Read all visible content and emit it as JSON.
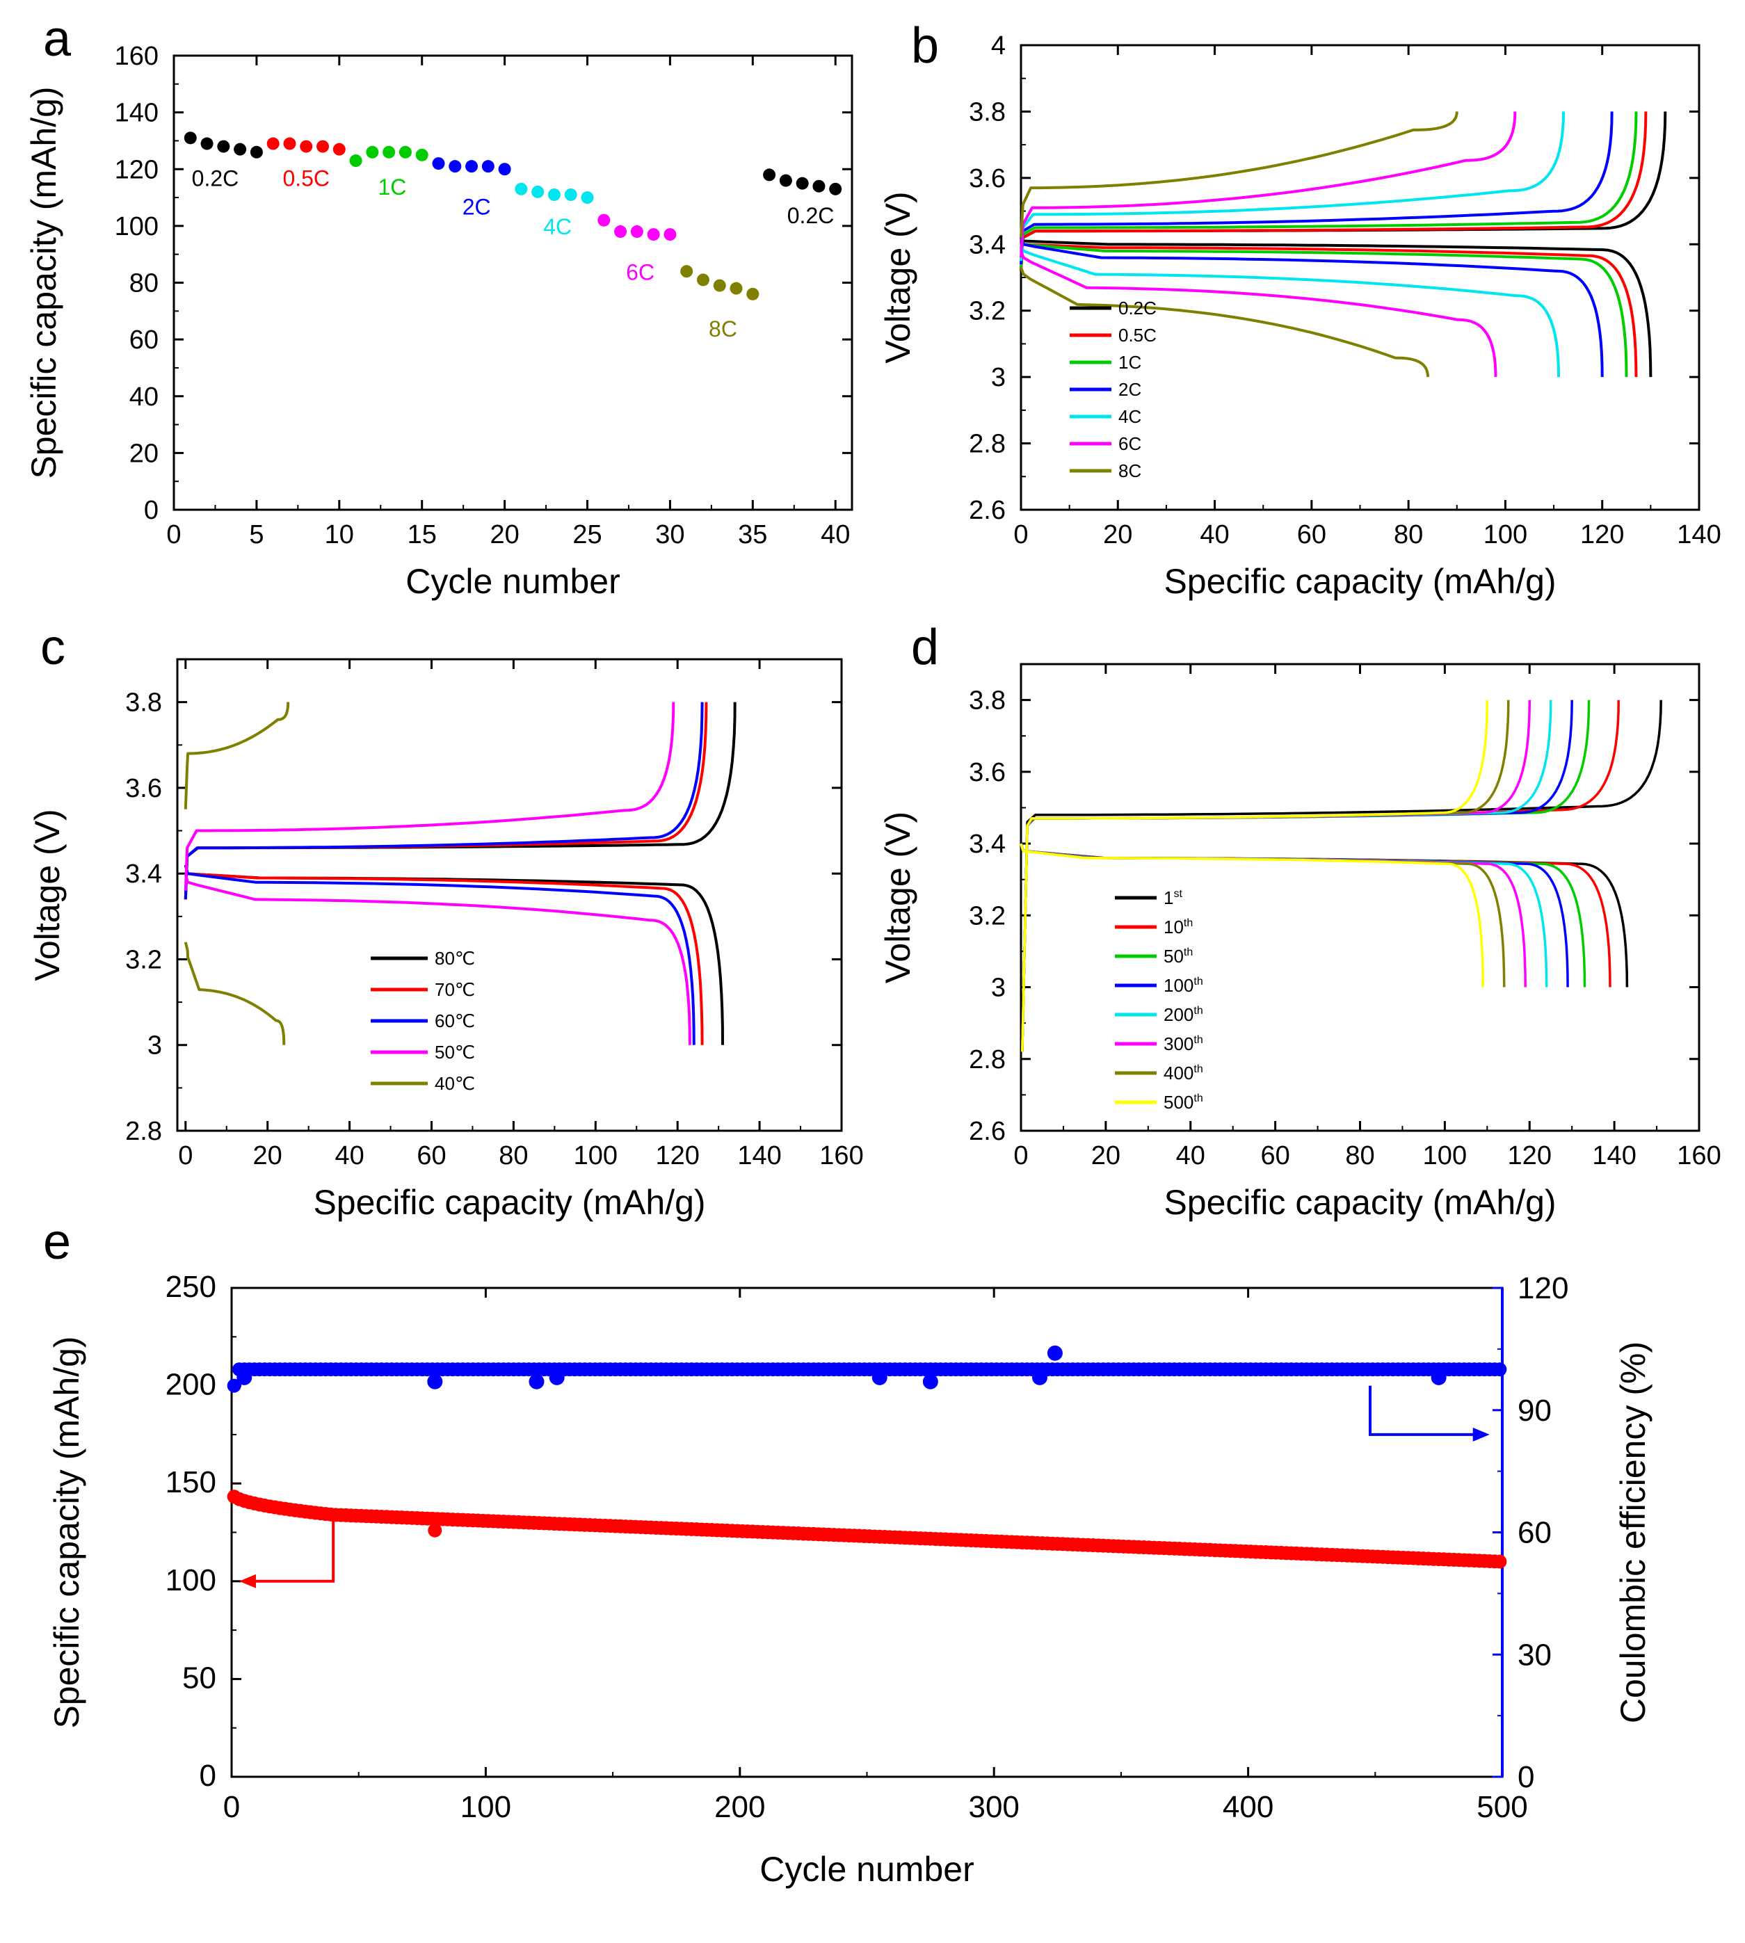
{
  "chart_data": [
    {
      "panel": "a",
      "type": "scatter",
      "xlabel": "Cycle number",
      "ylabel": "Specific capacity (mAh/g)",
      "xlim": [
        0,
        41
      ],
      "ylim": [
        0,
        160
      ],
      "xticks": [
        0,
        5,
        10,
        15,
        20,
        25,
        30,
        35,
        40
      ],
      "yticks": [
        0,
        20,
        40,
        60,
        80,
        100,
        120,
        140,
        160
      ],
      "series": [
        {
          "name": "0.2C",
          "color": "#000000",
          "x": [
            1,
            2,
            3,
            4,
            5
          ],
          "y": [
            131,
            129,
            128,
            127,
            126
          ]
        },
        {
          "name": "0.5C",
          "color": "#ff0000",
          "x": [
            6,
            7,
            8,
            9,
            10
          ],
          "y": [
            129,
            129,
            128,
            128,
            127
          ]
        },
        {
          "name": "1C",
          "color": "#00cc00",
          "x": [
            11,
            12,
            13,
            14,
            15
          ],
          "y": [
            123,
            126,
            126,
            126,
            125
          ]
        },
        {
          "name": "2C",
          "color": "#0000ff",
          "x": [
            16,
            17,
            18,
            19,
            20
          ],
          "y": [
            122,
            121,
            121,
            121,
            120
          ]
        },
        {
          "name": "4C",
          "color": "#00e5ee",
          "x": [
            21,
            22,
            23,
            24,
            25
          ],
          "y": [
            113,
            112,
            111,
            111,
            110
          ]
        },
        {
          "name": "6C",
          "color": "#ff00ff",
          "x": [
            26,
            27,
            28,
            29,
            30
          ],
          "y": [
            102,
            98,
            98,
            97,
            97
          ]
        },
        {
          "name": "8C",
          "color": "#808000",
          "x": [
            31,
            32,
            33,
            34,
            35
          ],
          "y": [
            84,
            81,
            79,
            78,
            76
          ]
        },
        {
          "name": "0.2C",
          "color": "#000000",
          "x": [
            36,
            37,
            38,
            39,
            40
          ],
          "y": [
            118,
            116,
            115,
            114,
            113
          ]
        }
      ],
      "annotations": [
        {
          "text": "0.2C",
          "color": "#000000",
          "x": 2.5,
          "y": 114
        },
        {
          "text": "0.5C",
          "color": "#ff0000",
          "x": 8,
          "y": 114
        },
        {
          "text": "1C",
          "color": "#00cc00",
          "x": 13.2,
          "y": 111
        },
        {
          "text": "2C",
          "color": "#0000ff",
          "x": 18.3,
          "y": 104
        },
        {
          "text": "4C",
          "color": "#00e5ee",
          "x": 23.2,
          "y": 97
        },
        {
          "text": "6C",
          "color": "#ff00ff",
          "x": 28.2,
          "y": 81
        },
        {
          "text": "8C",
          "color": "#808000",
          "x": 33.2,
          "y": 61
        },
        {
          "text": "0.2C",
          "color": "#000000",
          "x": 38.5,
          "y": 101
        }
      ]
    },
    {
      "panel": "b",
      "type": "line",
      "xlabel": "Specific capacity (mAh/g)",
      "ylabel": "Voltage (V)",
      "xlim": [
        0,
        140
      ],
      "ylim": [
        2.6,
        4.0
      ],
      "xticks": [
        0,
        20,
        40,
        60,
        80,
        100,
        120,
        140
      ],
      "yticks": [
        2.6,
        2.8,
        3.0,
        3.2,
        3.4,
        3.6,
        3.8,
        4.0
      ],
      "legend_position": "bottom-left",
      "series": [
        {
          "name": "0.2C",
          "color": "#000000",
          "capacity": 133,
          "plateau_charge": 3.45,
          "plateau_discharge": 3.4,
          "charge_start": 3.44,
          "discharge_start": 3.41,
          "discharge_cap": 130,
          "charge_slope": 0.01,
          "discharge_slope": 0.02
        },
        {
          "name": "0.5C",
          "color": "#ff0000",
          "capacity": 129,
          "plateau_charge": 3.45,
          "plateau_discharge": 3.39,
          "charge_start": 3.44,
          "discharge_start": 3.4,
          "discharge_cap": 127,
          "charge_slope": 0.015,
          "discharge_slope": 0.03
        },
        {
          "name": "1C",
          "color": "#00cc00",
          "capacity": 127,
          "plateau_charge": 3.46,
          "plateau_discharge": 3.38,
          "charge_start": 3.45,
          "discharge_start": 3.4,
          "discharge_cap": 125,
          "charge_slope": 0.02,
          "discharge_slope": 0.03
        },
        {
          "name": "2C",
          "color": "#0000ff",
          "capacity": 122,
          "plateau_charge": 3.47,
          "plateau_discharge": 3.36,
          "charge_start": 3.46,
          "discharge_start": 3.4,
          "discharge_cap": 120,
          "charge_slope": 0.05,
          "discharge_slope": 0.05
        },
        {
          "name": "4C",
          "color": "#00e5ee",
          "capacity": 112,
          "plateau_charge": 3.5,
          "plateau_discharge": 3.31,
          "charge_start": 3.47,
          "discharge_start": 3.38,
          "discharge_cap": 111,
          "charge_slope": 0.09,
          "discharge_slope": 0.08
        },
        {
          "name": "6C",
          "color": "#ff00ff",
          "capacity": 102,
          "plateau_charge": 3.52,
          "plateau_discharge": 3.27,
          "charge_start": 3.48,
          "discharge_start": 3.36,
          "discharge_cap": 98,
          "charge_slope": 0.18,
          "discharge_slope": 0.12
        },
        {
          "name": "8C",
          "color": "#808000",
          "capacity": 90,
          "plateau_charge": 3.58,
          "plateau_discharge": 3.22,
          "charge_start": 3.54,
          "discharge_start": 3.31,
          "discharge_cap": 84,
          "charge_slope": 0.22,
          "discharge_slope": 0.2
        }
      ],
      "charge_end_voltage": 3.8,
      "discharge_end_voltage": 3.0
    },
    {
      "panel": "c",
      "type": "line",
      "xlabel": "Specific capacity (mAh/g)",
      "ylabel": "Voltage (V)",
      "xlim": [
        -2,
        160
      ],
      "ylim": [
        2.8,
        3.9
      ],
      "xticks": [
        0,
        20,
        40,
        60,
        80,
        100,
        120,
        140,
        160
      ],
      "yticks": [
        2.8,
        3.0,
        3.2,
        3.4,
        3.6,
        3.8
      ],
      "legend_position": "bottom-center",
      "series": [
        {
          "name": "80℃",
          "color": "#000000",
          "capacity": 134,
          "plateau_charge": 3.47,
          "plateau_discharge": 3.39,
          "charge_start": 3.46,
          "discharge_start": 3.4,
          "discharge_cap": 131,
          "charge_slope": 0.01,
          "discharge_slope": 0.02
        },
        {
          "name": "70℃",
          "color": "#ff0000",
          "capacity": 127,
          "plateau_charge": 3.47,
          "plateau_discharge": 3.39,
          "charge_start": 3.46,
          "discharge_start": 3.4,
          "discharge_cap": 126,
          "charge_slope": 0.02,
          "discharge_slope": 0.03
        },
        {
          "name": "60℃",
          "color": "#0000ff",
          "capacity": 126,
          "plateau_charge": 3.47,
          "plateau_discharge": 3.38,
          "charge_start": 3.46,
          "discharge_start": 3.4,
          "discharge_cap": 124,
          "charge_slope": 0.03,
          "discharge_slope": 0.04
        },
        {
          "name": "50℃",
          "color": "#ff00ff",
          "capacity": 119,
          "plateau_charge": 3.51,
          "plateau_discharge": 3.34,
          "charge_start": 3.48,
          "discharge_start": 3.38,
          "discharge_cap": 123,
          "charge_slope": 0.06,
          "discharge_slope": 0.06
        },
        {
          "name": "40℃",
          "color": "#808000",
          "capacity": 25,
          "plateau_charge": 3.69,
          "plateau_discharge": 3.13,
          "charge_start": 3.67,
          "discharge_start": 3.22,
          "discharge_cap": 24,
          "charge_slope": 0.1,
          "discharge_slope": 0.09
        }
      ],
      "charge_end_voltage": 3.8,
      "discharge_end_voltage": 3.0
    },
    {
      "panel": "d",
      "type": "line",
      "xlabel": "Specific capacity (mAh/g)",
      "ylabel": "Voltage (V)",
      "xlim": [
        0,
        160
      ],
      "ylim": [
        2.6,
        3.9
      ],
      "xticks": [
        0,
        20,
        40,
        60,
        80,
        100,
        120,
        140,
        160
      ],
      "yticks": [
        2.6,
        2.8,
        3.0,
        3.2,
        3.4,
        3.6,
        3.8
      ],
      "legend_position": "bottom-left",
      "series": [
        {
          "name": "1",
          "sup": "st",
          "color": "#000000",
          "capacity": 151,
          "plateau_charge": 3.49,
          "plateau_discharge": 3.36,
          "charge_start": 3.48,
          "discharge_start": 3.38,
          "discharge_cap": 143,
          "charge_slope": 0.03,
          "discharge_slope": 0.02
        },
        {
          "name": "10",
          "sup": "th",
          "color": "#ff0000",
          "capacity": 141,
          "plateau_charge": 3.48,
          "plateau_discharge": 3.36,
          "charge_start": 3.47,
          "discharge_start": 3.38,
          "discharge_cap": 139,
          "charge_slope": 0.03,
          "discharge_slope": 0.02
        },
        {
          "name": "50",
          "sup": "th",
          "color": "#00cc00",
          "capacity": 134,
          "plateau_charge": 3.48,
          "plateau_discharge": 3.36,
          "charge_start": 3.47,
          "discharge_start": 3.38,
          "discharge_cap": 133,
          "charge_slope": 0.02,
          "discharge_slope": 0.02
        },
        {
          "name": "100",
          "sup": "th",
          "color": "#0000ff",
          "capacity": 130,
          "plateau_charge": 3.48,
          "plateau_discharge": 3.36,
          "charge_start": 3.47,
          "discharge_start": 3.38,
          "discharge_cap": 129,
          "charge_slope": 0.02,
          "discharge_slope": 0.02
        },
        {
          "name": "200",
          "sup": "th",
          "color": "#00e5ee",
          "capacity": 125,
          "plateau_charge": 3.48,
          "plateau_discharge": 3.36,
          "charge_start": 3.47,
          "discharge_start": 3.38,
          "discharge_cap": 124,
          "charge_slope": 0.02,
          "discharge_slope": 0.02
        },
        {
          "name": "300",
          "sup": "th",
          "color": "#ff00ff",
          "capacity": 120,
          "plateau_charge": 3.48,
          "plateau_discharge": 3.36,
          "charge_start": 3.47,
          "discharge_start": 3.38,
          "discharge_cap": 119,
          "charge_slope": 0.02,
          "discharge_slope": 0.02
        },
        {
          "name": "400",
          "sup": "th",
          "color": "#808000",
          "capacity": 115,
          "plateau_charge": 3.48,
          "plateau_discharge": 3.36,
          "charge_start": 3.47,
          "discharge_start": 3.38,
          "discharge_cap": 114,
          "charge_slope": 0.02,
          "discharge_slope": 0.02
        },
        {
          "name": "500",
          "sup": "th",
          "color": "#ffff00",
          "capacity": 110,
          "plateau_charge": 3.48,
          "plateau_discharge": 3.36,
          "charge_start": 3.47,
          "discharge_start": 3.38,
          "discharge_cap": 109,
          "charge_slope": 0.02,
          "discharge_slope": 0.02
        }
      ],
      "charge_end_voltage": 3.8,
      "discharge_end_voltage": 3.0
    },
    {
      "panel": "e",
      "type": "scatter",
      "xlabel": "Cycle number",
      "ylabel": "Specific capacity (mAh/g)",
      "y2label": "Coulombic efficiency (%)",
      "xlim": [
        0,
        500
      ],
      "ylim": [
        0,
        250
      ],
      "y2lim": [
        0,
        120
      ],
      "xticks": [
        0,
        100,
        200,
        300,
        400,
        500
      ],
      "yticks": [
        0,
        50,
        100,
        150,
        200,
        250
      ],
      "y2ticks": [
        0,
        30,
        60,
        90,
        120
      ],
      "series": [
        {
          "name": "Specific capacity",
          "color": "#ff0000",
          "axis": "left",
          "start": 145,
          "knee_cycle": 40,
          "knee_value": 134,
          "end": 110
        },
        {
          "name": "Coulombic efficiency",
          "color": "#0000ff",
          "axis": "right",
          "typical": 100,
          "first_cycle": 96
        }
      ],
      "outliers_capacity": [
        [
          80,
          126
        ]
      ],
      "outliers_efficiency": [
        [
          5,
          98
        ],
        [
          80,
          97
        ],
        [
          120,
          97
        ],
        [
          128,
          98
        ],
        [
          255,
          98
        ],
        [
          275,
          97
        ],
        [
          318,
          98
        ],
        [
          324,
          104
        ],
        [
          475,
          98
        ]
      ],
      "arrows": [
        {
          "direction": "left",
          "color": "#ff0000",
          "from_cycle": 40,
          "from_value": 145,
          "to_cycle": 3,
          "to_value": 100,
          "axis": "left"
        },
        {
          "direction": "right",
          "color": "#0000ff",
          "from_cycle": 448,
          "from_value": 96,
          "to_cycle": 495,
          "to_value": 84,
          "axis": "right"
        }
      ]
    }
  ],
  "panel_labels": {
    "a": "a",
    "b": "b",
    "c": "c",
    "d": "d",
    "e": "e"
  }
}
